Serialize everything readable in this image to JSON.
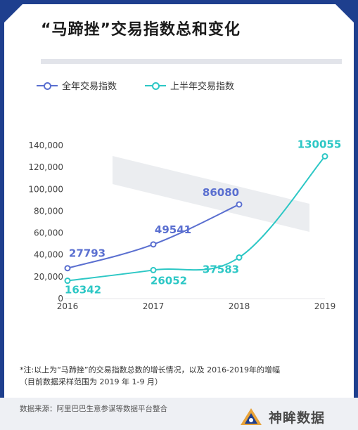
{
  "title": "“马蹄挫”交易指数总和变化",
  "legend": {
    "full_year": "全年交易指数",
    "half_year": "上半年交易指数"
  },
  "colors": {
    "full_year": "#5a6fd0",
    "half_year": "#2cc7c5",
    "frame": "#1e3f8e"
  },
  "chart_data": {
    "type": "line",
    "categories": [
      "2016",
      "2017",
      "2018",
      "2019"
    ],
    "ylim": [
      0,
      140000
    ],
    "y_ticks": [
      "0",
      "20,000",
      "40,000",
      "60,000",
      "80,000",
      "100,000",
      "120,000",
      "140,000"
    ],
    "grid": false,
    "legend_position": "top-left",
    "series": [
      {
        "name": "全年交易指数",
        "values": [
          27793,
          49541,
          86080,
          null
        ],
        "labels": [
          "27793",
          "49541",
          "86080",
          ""
        ]
      },
      {
        "name": "上半年交易指数",
        "values": [
          16342,
          26052,
          37583,
          130055
        ],
        "labels": [
          "16342",
          "26052",
          "37583",
          "130055"
        ]
      }
    ]
  },
  "footnote": {
    "line1": "*注:以上为“马蹄挫”的交易指数总数的增长情况，以及 2016-2019年的增幅",
    "line2": "（目前数据采样范围为 2019 年 1-9 月）"
  },
  "source": "数据来源：阿里巴巴生意参谋等数据平台整合",
  "brand": "神眸数据"
}
